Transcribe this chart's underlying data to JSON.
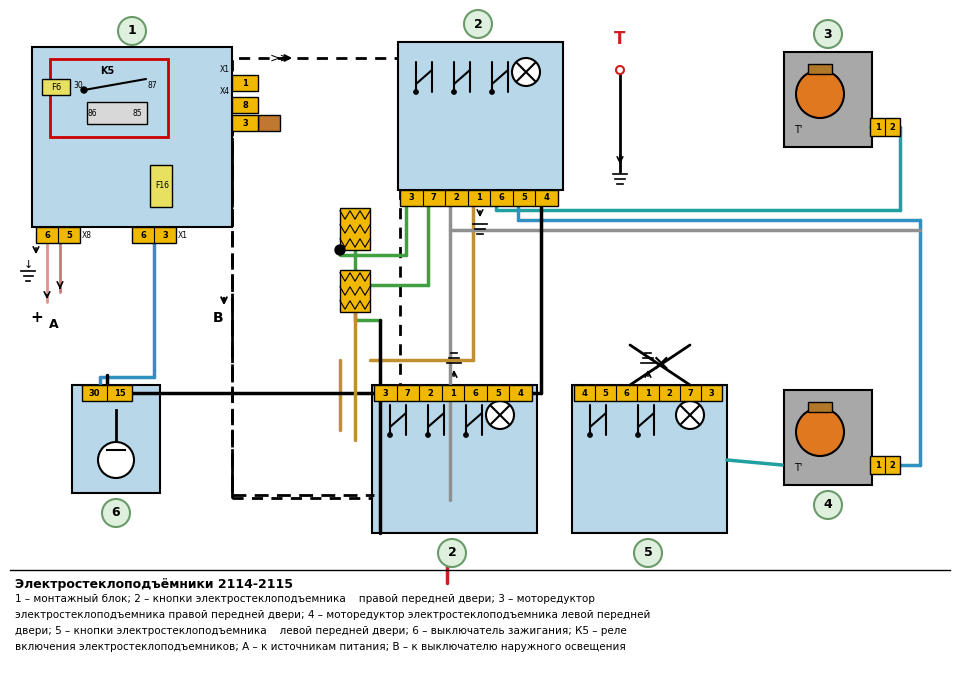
{
  "title": "Электростеклоподъёмники 2114-2115",
  "caption_line1": "1 – монтажный блок; 2 – кнопки электростеклоподъемника    правой передней двери; 3 – моторедуктор",
  "caption_line2": "электростеклоподъемника правой передней двери; 4 – моторедуктор электростеклоподъемника левой передней",
  "caption_line3": "двери; 5 – кнопки электростеклоподъемника    левой передней двери; 6 – выключатель зажигания; К5 – реле",
  "caption_line4": "включения электростеклоподъемников; А – к источникам питания; В – к выключателю наружного освещения",
  "bg": "#ffffff",
  "blue_fill": "#b8d8ea",
  "gray_fill": "#a8a8a8",
  "yellow_conn": "#f0b800",
  "red_border": "#cc0000",
  "orange_fill": "#e07820",
  "brown_wire": "#c09030",
  "green_wire": "#40a040",
  "teal_wire": "#20a0a0",
  "blue_wire": "#3090c0",
  "gray_wire": "#909090",
  "black_wire": "#000000",
  "pink_wire": "#e09090",
  "red_wire": "#cc2020",
  "white_fill": "#ffffff"
}
